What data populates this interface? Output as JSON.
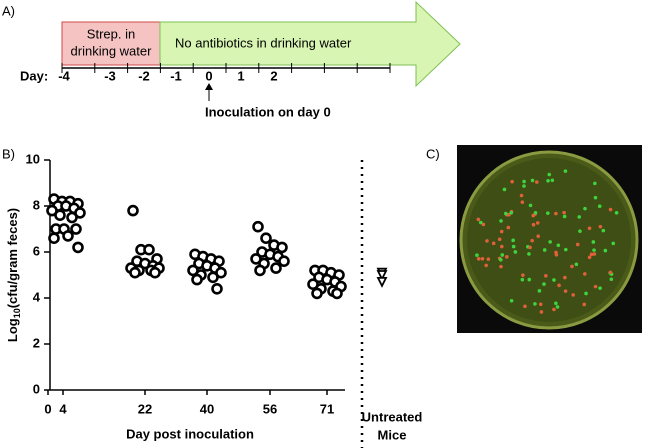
{
  "panel_a": {
    "label": "A)",
    "strep_lines": [
      "Strep.  in",
      "drinking water"
    ],
    "no_antibiotics": "No antibiotics in drinking water",
    "day_label": "Day:",
    "days": [
      "-4",
      "-3",
      "-2",
      "-1",
      "0",
      "1",
      "2"
    ],
    "inoculation": "Inoculation on day 0"
  },
  "chart_data": {
    "type": "strip",
    "panel_label": "B)",
    "y_label": {
      "base": "Log",
      "subscript": "10",
      "rest": "(cfu/gram feces)"
    },
    "x_label": "Day post inoculation",
    "categories": [
      "0",
      "4",
      "22",
      "40",
      "56",
      "71"
    ],
    "values": [
      [],
      [
        8.3,
        8.2,
        8.2,
        8.1,
        8.0,
        8.0,
        7.9,
        7.8,
        7.7,
        7.6,
        7.5,
        7.0,
        7.0,
        7.0,
        6.7,
        6.6,
        6.2
      ],
      [
        7.8,
        6.1,
        6.1,
        5.7,
        5.6,
        5.5,
        5.4,
        5.3,
        5.3,
        5.2,
        5.2,
        5.1,
        5.1
      ],
      [
        5.9,
        5.8,
        5.7,
        5.6,
        5.5,
        5.4,
        5.3,
        5.2,
        5.1,
        5.0,
        4.9,
        4.8,
        4.4
      ],
      [
        7.1,
        6.6,
        6.3,
        6.2,
        6.0,
        5.9,
        5.8,
        5.7,
        5.6,
        5.5,
        5.3,
        5.2
      ],
      [
        5.2,
        5.2,
        5.1,
        5.0,
        4.9,
        4.8,
        4.7,
        4.6,
        4.5,
        4.4,
        4.3,
        4.2,
        4.2
      ]
    ],
    "untreated": {
      "label_lines": [
        "Untreated",
        "Mice"
      ],
      "values": [
        5.1,
        5.0,
        4.7
      ]
    },
    "ylim": [
      0,
      10
    ],
    "yticks": [
      0,
      2,
      4,
      6,
      8,
      10
    ]
  },
  "panel_c": {
    "label": "C)"
  }
}
